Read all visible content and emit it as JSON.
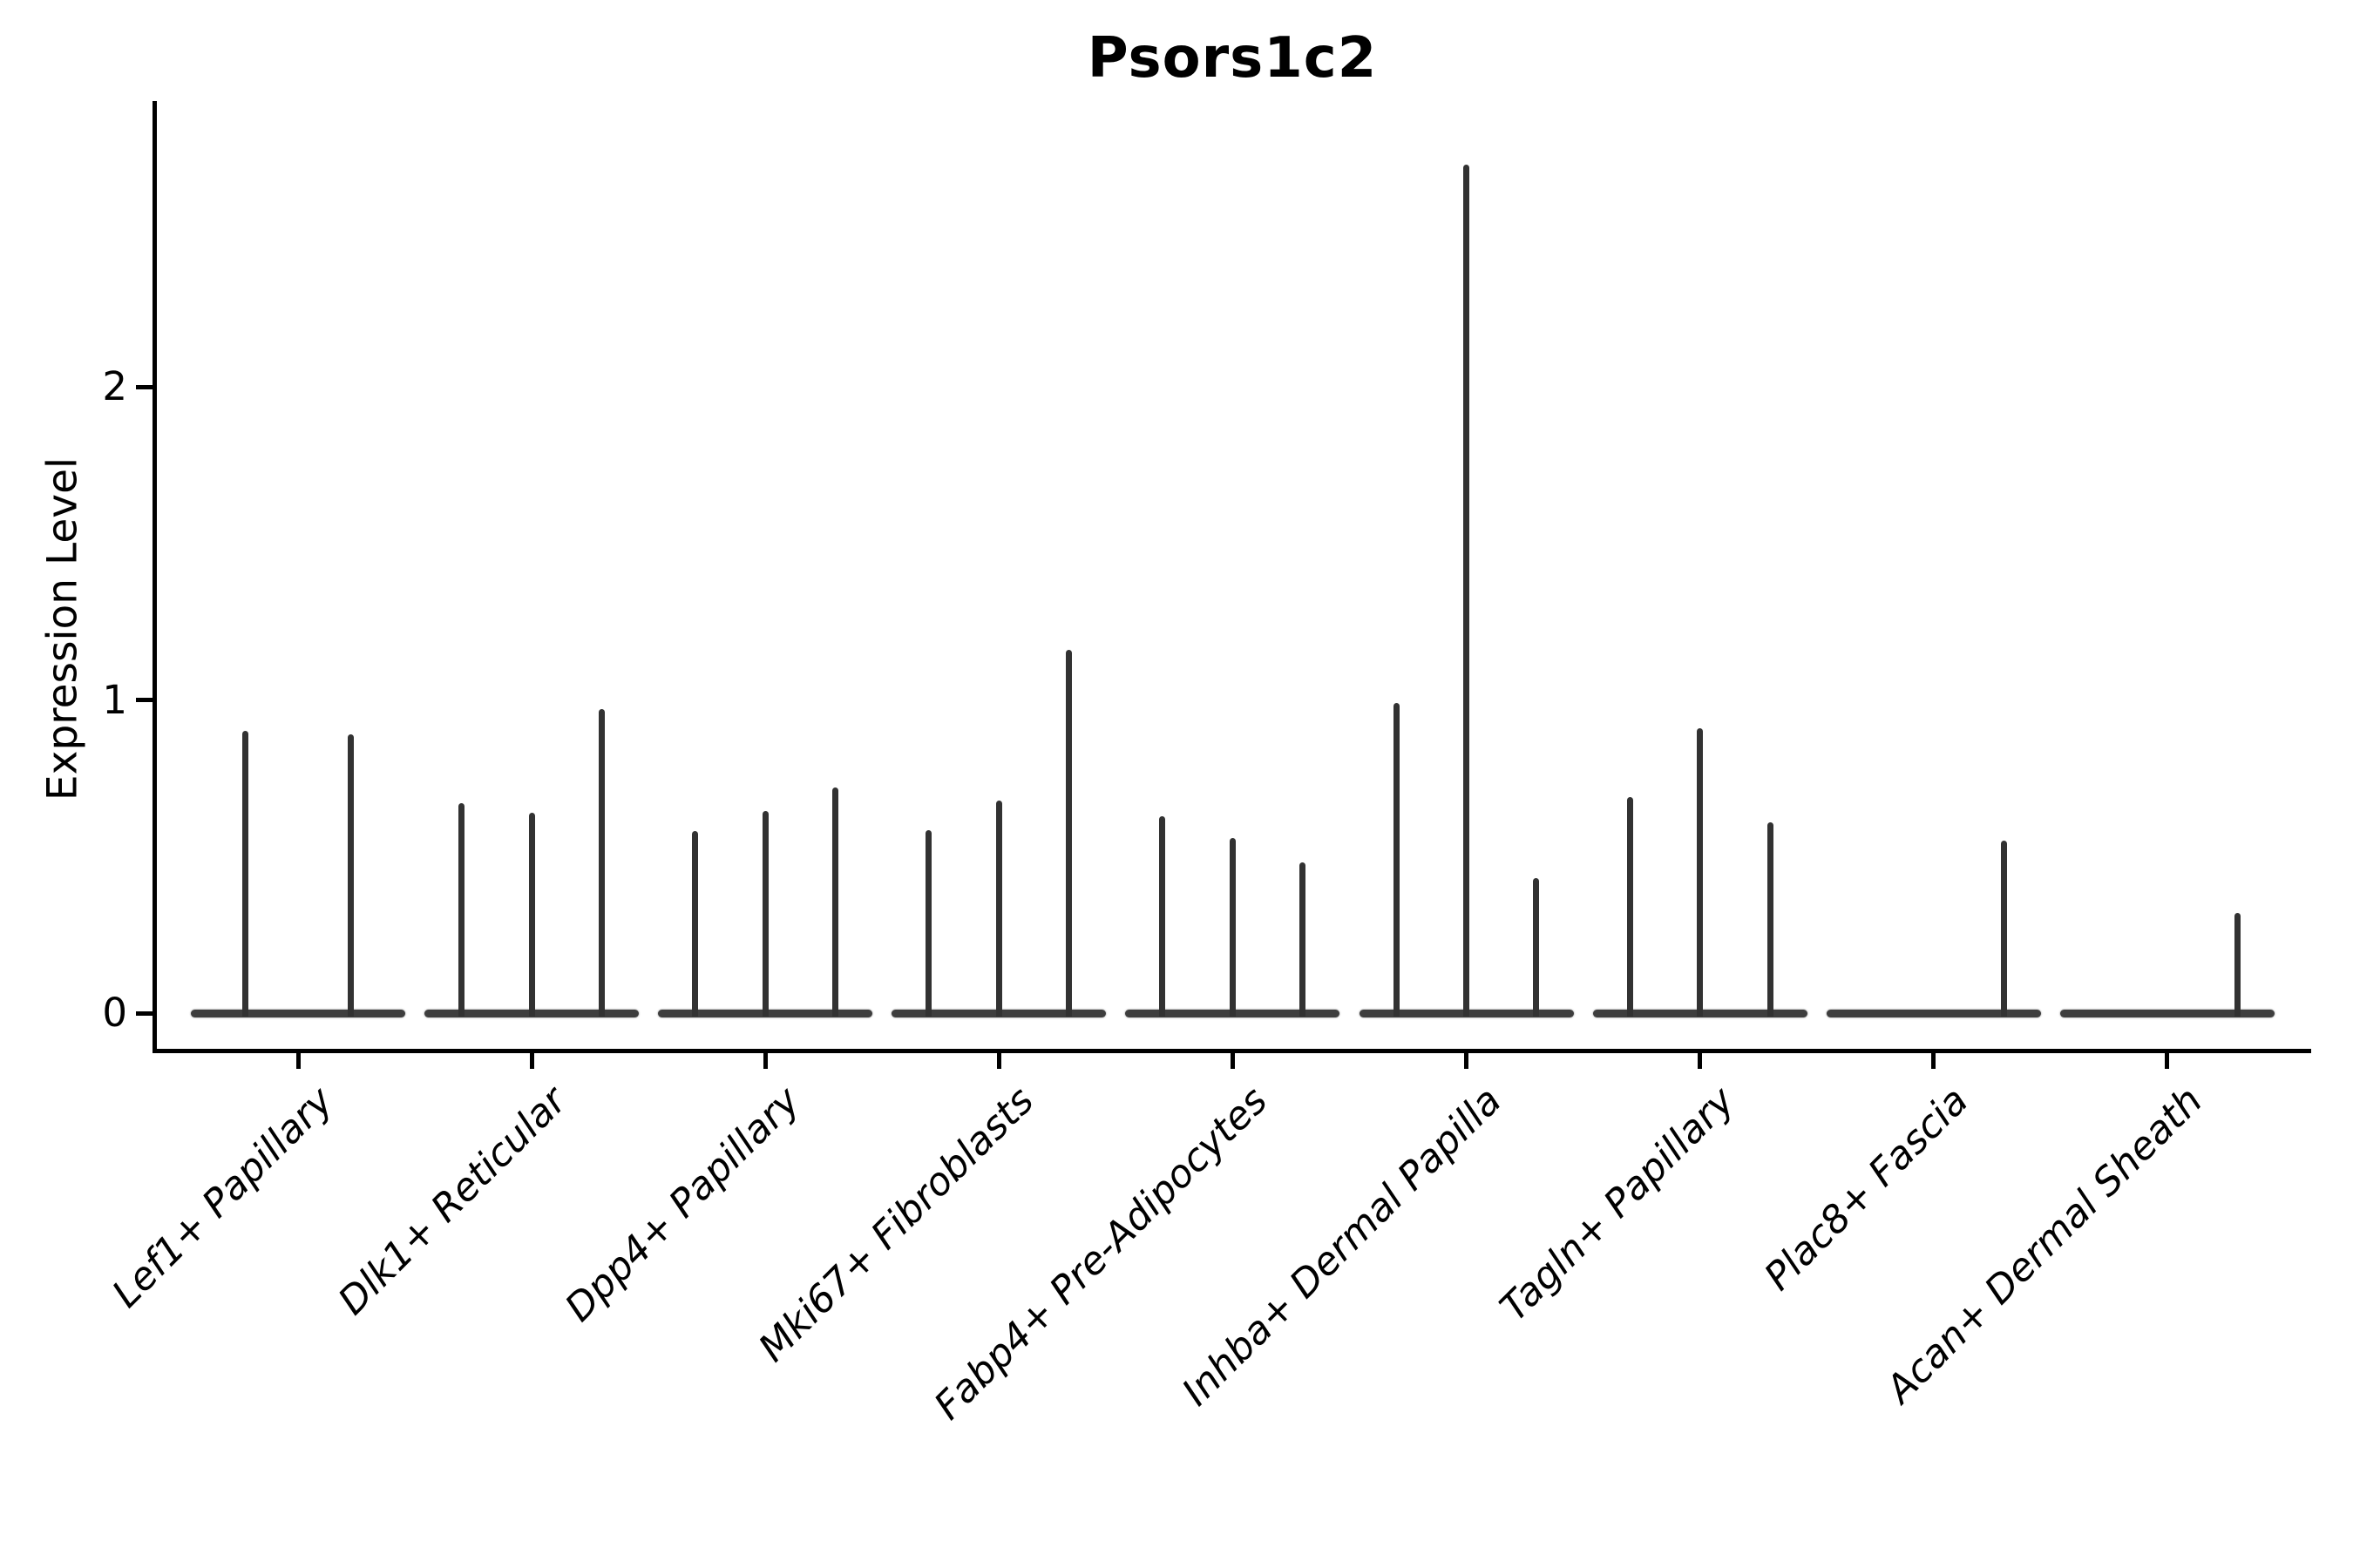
{
  "chart_data": {
    "type": "violin",
    "title": "Psors1c2",
    "ylabel": "Expression Level",
    "xlabel": "",
    "yticks": [
      0,
      1,
      2
    ],
    "ylim": [
      -0.17,
      2.9
    ],
    "grid": false,
    "legend": "none",
    "note": "Stacked-violin style expression plot; each cell-type category shows narrow grouped violins collapsed to a flat base at 0 with thin density spikes up to the max expression value",
    "categories": [
      "Lef1+ Papillary",
      "Dlk1+ Reticular",
      "Dpp4+ Papillary",
      "Mki67+ Fibroblasts",
      "Fabp4+ Pre-Adipocytes",
      "Inhba+ Dermal Papilla",
      "Tagln+ Papillary",
      "Plac8+ Fascia",
      "Acan+ Dermal Sheath"
    ],
    "violins": [
      [
        {
          "offset": -0.225,
          "max": 0.9
        },
        {
          "offset": 0.225,
          "max": 0.89
        }
      ],
      [
        {
          "offset": -0.3,
          "max": 0.67
        },
        {
          "offset": 0.0,
          "max": 0.64
        },
        {
          "offset": 0.3,
          "max": 0.97
        }
      ],
      [
        {
          "offset": -0.3,
          "max": 0.58
        },
        {
          "offset": 0.0,
          "max": 0.645
        },
        {
          "offset": 0.3,
          "max": 0.72
        }
      ],
      [
        {
          "offset": -0.3,
          "max": 0.585
        },
        {
          "offset": 0.0,
          "max": 0.68
        },
        {
          "offset": 0.3,
          "max": 1.16
        }
      ],
      [
        {
          "offset": -0.3,
          "max": 0.63
        },
        {
          "offset": 0.0,
          "max": 0.56
        },
        {
          "offset": 0.3,
          "max": 0.48
        }
      ],
      [
        {
          "offset": -0.3,
          "max": 0.99
        },
        {
          "offset": 0.0,
          "max": 2.71
        },
        {
          "offset": 0.3,
          "max": 0.43
        }
      ],
      [
        {
          "offset": -0.3,
          "max": 0.69
        },
        {
          "offset": 0.0,
          "max": 0.91
        },
        {
          "offset": 0.3,
          "max": 0.61
        }
      ],
      [
        {
          "offset": -0.3,
          "max": 0.0
        },
        {
          "offset": 0.0,
          "max": 0.0
        },
        {
          "offset": 0.3,
          "max": 0.55
        }
      ],
      [
        {
          "offset": -0.3,
          "max": 0.0
        },
        {
          "offset": 0.0,
          "max": 0.0
        },
        {
          "offset": 0.3,
          "max": 0.32
        }
      ]
    ],
    "colors": {
      "spike": "#323232",
      "base": "#3e3e3e",
      "axis": "#000000",
      "background": "#ffffff"
    }
  }
}
